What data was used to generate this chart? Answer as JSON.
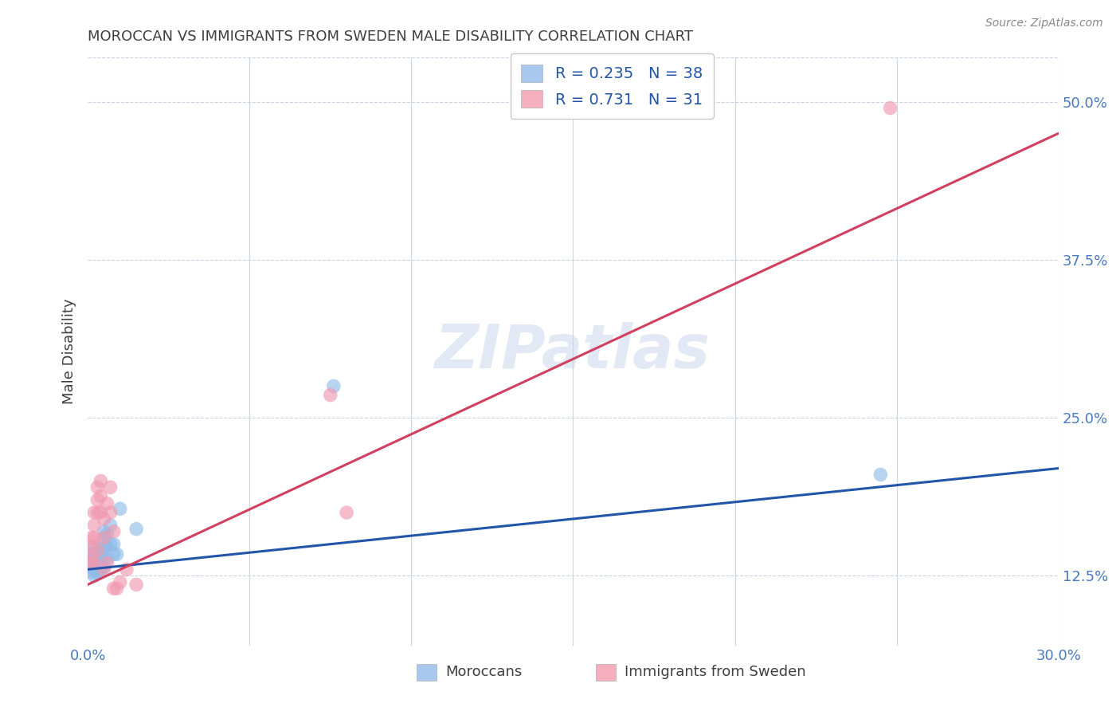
{
  "title": "MOROCCAN VS IMMIGRANTS FROM SWEDEN MALE DISABILITY CORRELATION CHART",
  "source": "Source: ZipAtlas.com",
  "ylabel": "Male Disability",
  "watermark": "ZIPatlas",
  "xlim": [
    0.0,
    0.3
  ],
  "ylim": [
    0.07,
    0.535
  ],
  "xticks": [
    0.0,
    0.05,
    0.1,
    0.15,
    0.2,
    0.25,
    0.3
  ],
  "xtick_labels": [
    "0.0%",
    "",
    "",
    "",
    "",
    "",
    "30.0%"
  ],
  "yticks": [
    0.125,
    0.25,
    0.375,
    0.5
  ],
  "ytick_labels": [
    "12.5%",
    "25.0%",
    "37.5%",
    "50.0%"
  ],
  "legend_entries": [
    {
      "label": "R = 0.235   N = 38",
      "color": "#a8c8f0"
    },
    {
      "label": "R = 0.731   N = 31",
      "color": "#f5b0c0"
    }
  ],
  "blue_color": "#90bce8",
  "pink_color": "#f09ab0",
  "blue_line_color": "#2255aa",
  "pink_line_color": "#d04060",
  "moroccan_x": [
    0.001,
    0.001,
    0.001,
    0.001,
    0.002,
    0.002,
    0.002,
    0.002,
    0.002,
    0.002,
    0.003,
    0.003,
    0.003,
    0.003,
    0.003,
    0.003,
    0.004,
    0.004,
    0.004,
    0.004,
    0.004,
    0.005,
    0.005,
    0.005,
    0.005,
    0.005,
    0.006,
    0.006,
    0.006,
    0.007,
    0.007,
    0.008,
    0.008,
    0.009,
    0.01,
    0.015,
    0.076,
    0.245
  ],
  "moroccan_y": [
    0.132,
    0.138,
    0.142,
    0.128,
    0.135,
    0.14,
    0.148,
    0.13,
    0.136,
    0.125,
    0.142,
    0.138,
    0.135,
    0.13,
    0.127,
    0.133,
    0.145,
    0.14,
    0.136,
    0.132,
    0.128,
    0.155,
    0.148,
    0.16,
    0.138,
    0.132,
    0.158,
    0.148,
    0.138,
    0.165,
    0.15,
    0.15,
    0.142,
    0.142,
    0.178,
    0.162,
    0.275,
    0.205
  ],
  "sweden_x": [
    0.001,
    0.001,
    0.001,
    0.001,
    0.002,
    0.002,
    0.002,
    0.002,
    0.003,
    0.003,
    0.003,
    0.003,
    0.004,
    0.004,
    0.004,
    0.005,
    0.005,
    0.005,
    0.006,
    0.006,
    0.007,
    0.007,
    0.008,
    0.008,
    0.009,
    0.01,
    0.012,
    0.015,
    0.075,
    0.08,
    0.248
  ],
  "sweden_y": [
    0.14,
    0.135,
    0.148,
    0.155,
    0.175,
    0.165,
    0.155,
    0.135,
    0.185,
    0.175,
    0.195,
    0.145,
    0.2,
    0.188,
    0.175,
    0.17,
    0.155,
    0.13,
    0.182,
    0.135,
    0.195,
    0.175,
    0.115,
    0.16,
    0.115,
    0.12,
    0.13,
    0.118,
    0.268,
    0.175,
    0.495
  ],
  "blue_line_x": [
    0.0,
    0.3
  ],
  "blue_line_y": [
    0.13,
    0.21
  ],
  "pink_line_x": [
    0.0,
    0.3
  ],
  "pink_line_y": [
    0.118,
    0.475
  ],
  "grid_color": "#c8d4e0",
  "background_color": "#ffffff",
  "bottom_legend": [
    "Moroccans",
    "Immigrants from Sweden"
  ],
  "title_color": "#404040",
  "axis_label_color": "#4a7abf",
  "source_color": "#888888"
}
